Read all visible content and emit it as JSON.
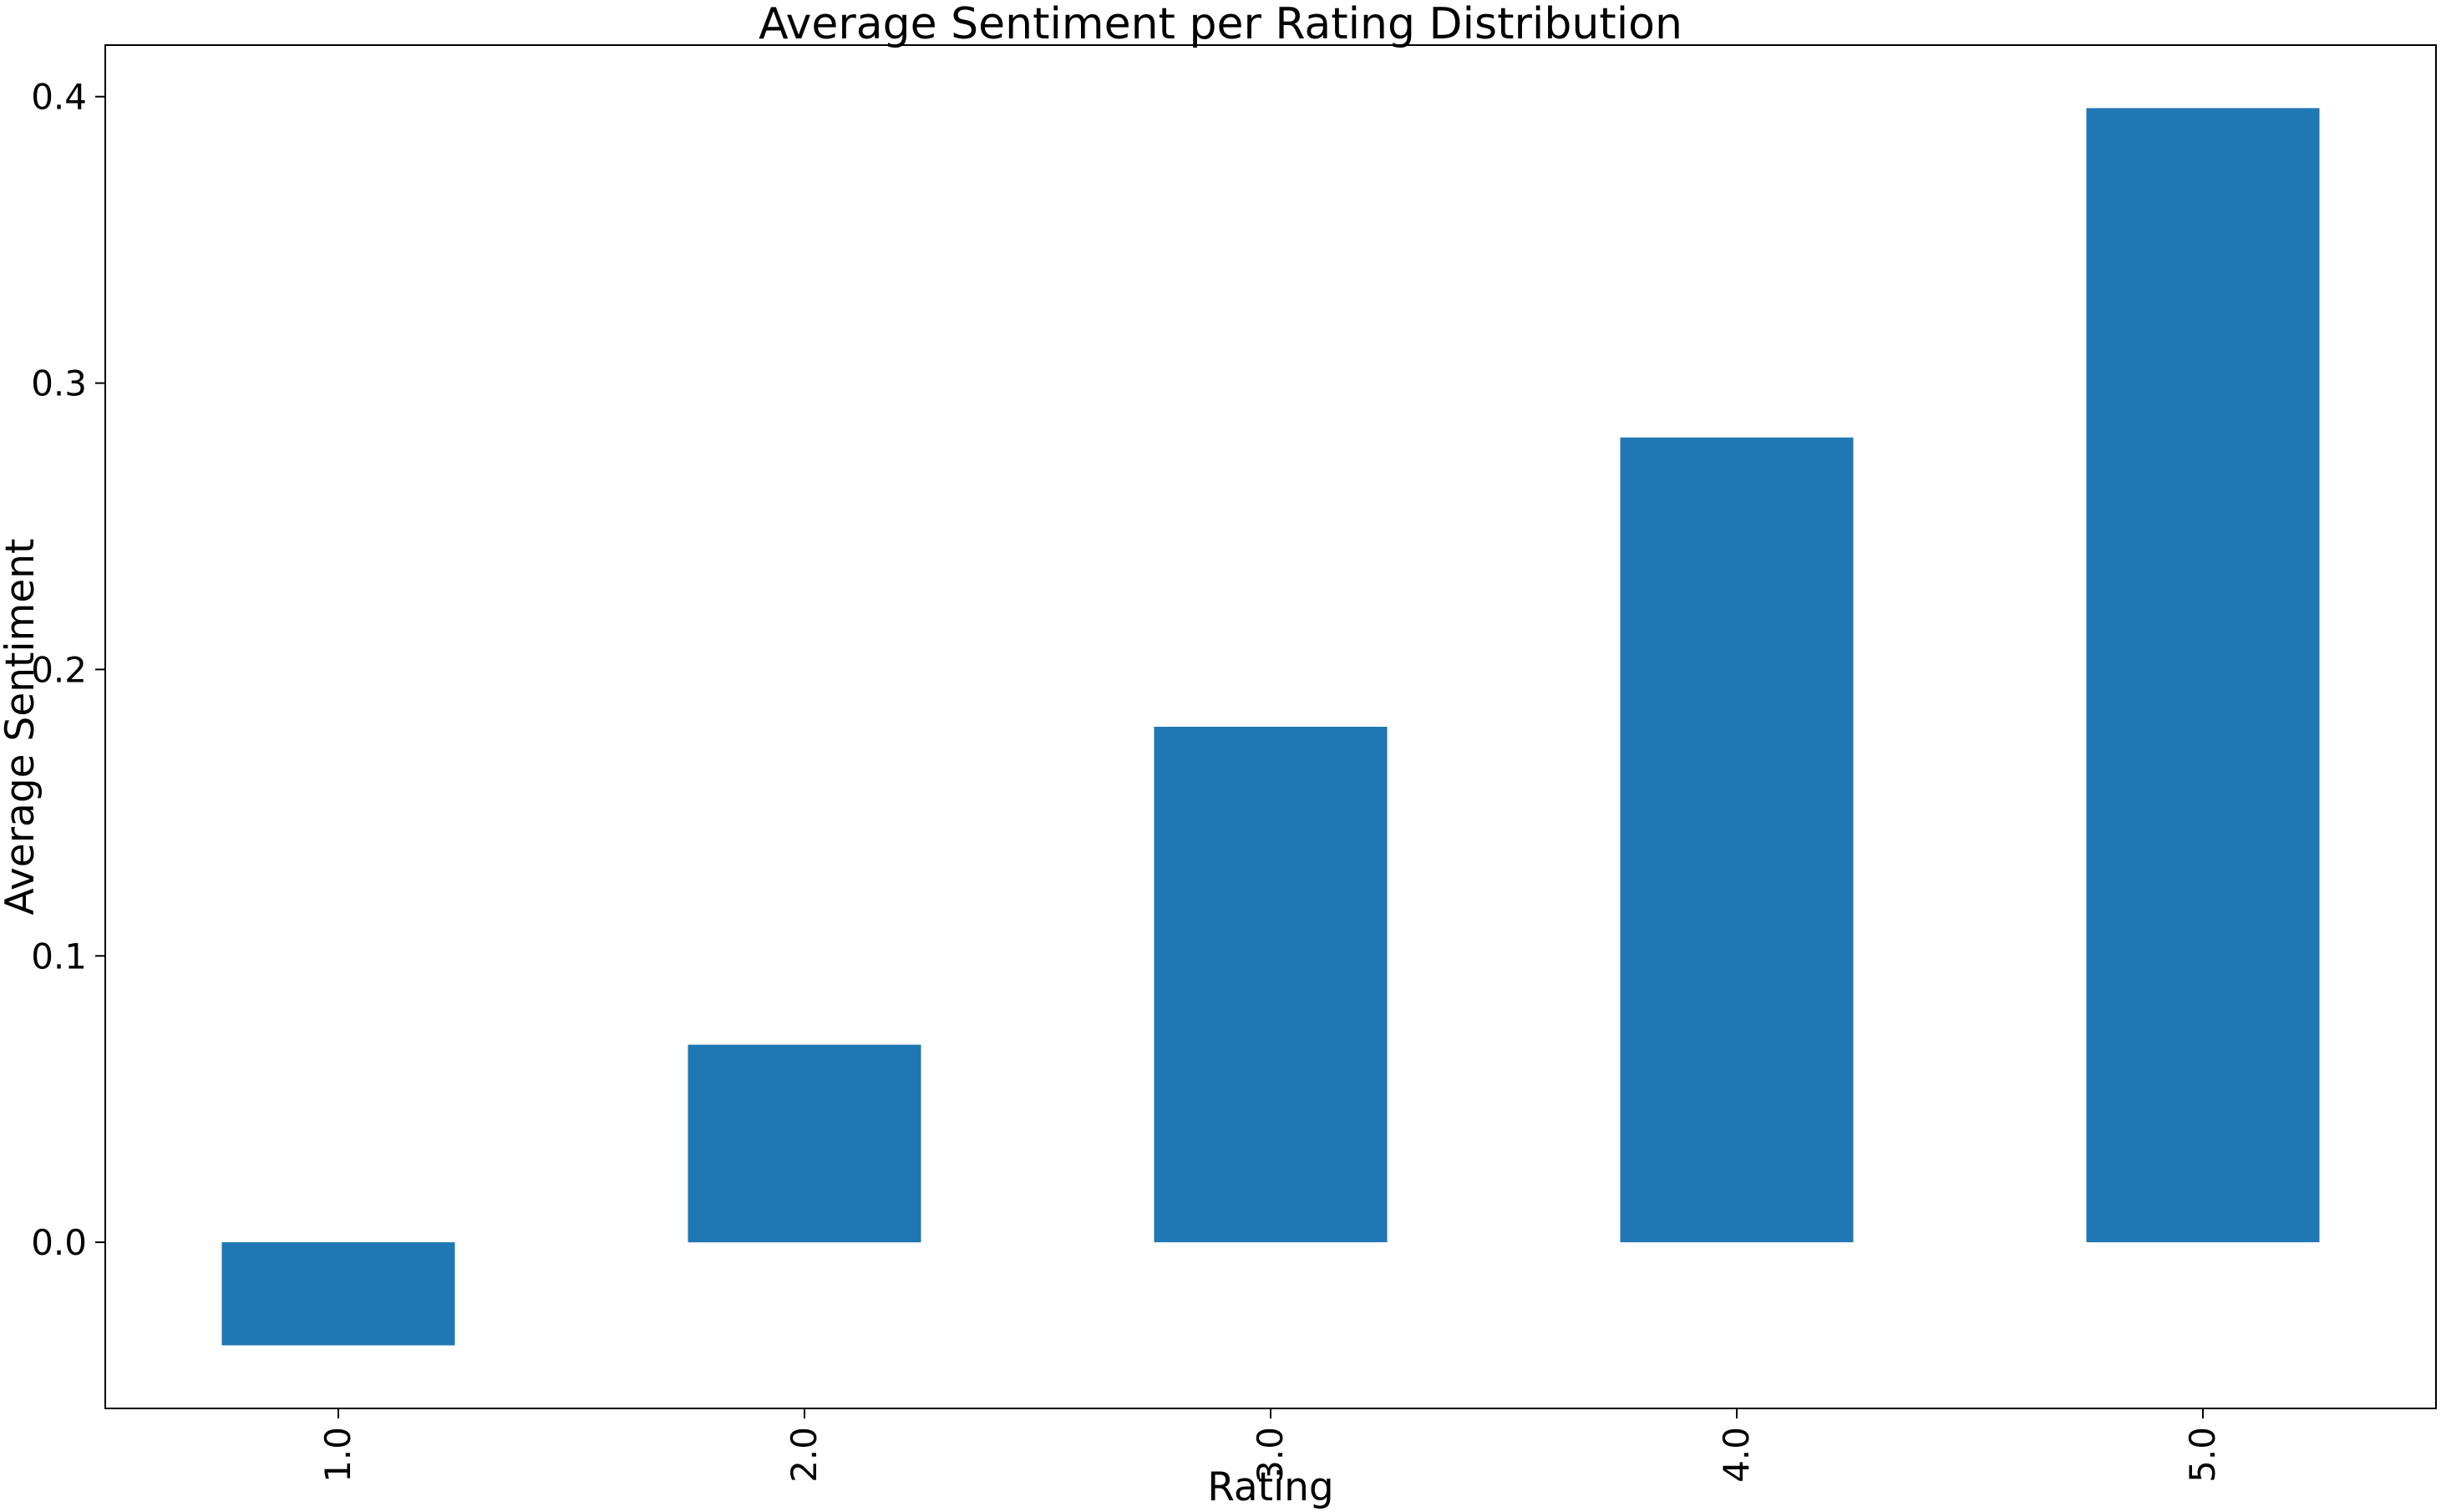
{
  "chart_data": {
    "type": "bar",
    "title": "Average Sentiment per Rating Distribution",
    "xlabel": "Rating",
    "ylabel": "Average Sentiment",
    "categories": [
      "1.0",
      "2.0",
      "3.0",
      "4.0",
      "5.0"
    ],
    "values": [
      -0.036,
      0.069,
      0.18,
      0.281,
      0.396
    ],
    "ylim": [
      -0.058,
      0.418
    ],
    "yticks": [
      "0.0",
      "0.1",
      "0.2",
      "0.3",
      "0.4"
    ],
    "ytick_values": [
      0.0,
      0.1,
      0.2,
      0.3,
      0.4
    ],
    "grid": false,
    "legend": "none",
    "bar_color": "#1f77b4"
  }
}
